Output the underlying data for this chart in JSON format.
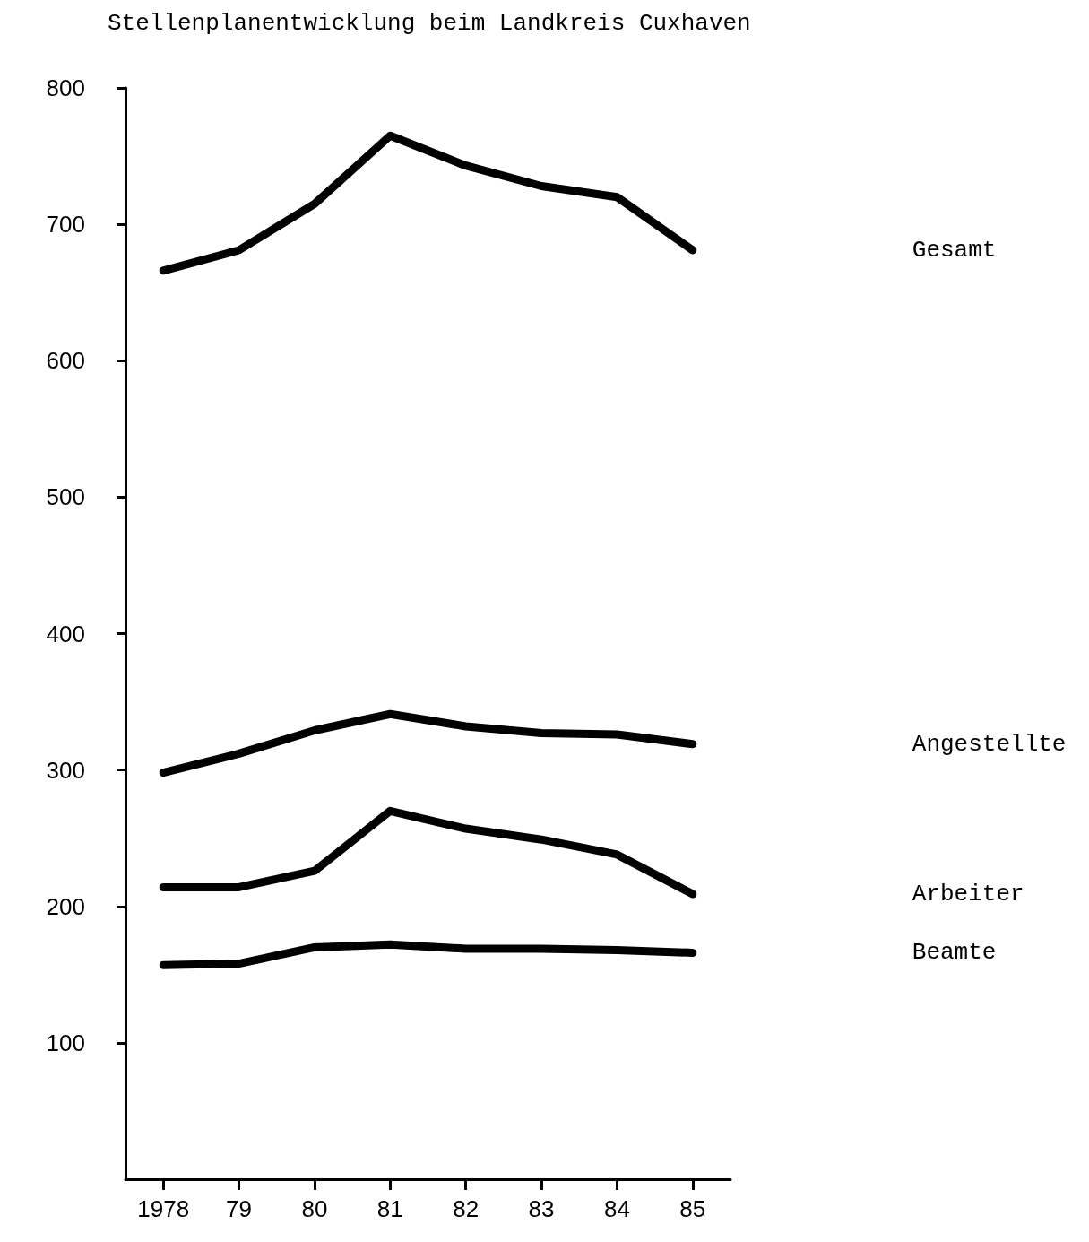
{
  "chart_data": {
    "type": "line",
    "title": "Stellenplanentwicklung beim Landkreis Cuxhaven",
    "categories": [
      "1978",
      "79",
      "80",
      "81",
      "82",
      "83",
      "84",
      "85"
    ],
    "series": [
      {
        "name": "Gesamt",
        "color": "#000000",
        "values": [
          666,
          681,
          715,
          765,
          743,
          728,
          720,
          681
        ]
      },
      {
        "name": "Angestellte",
        "color": "#000000",
        "values": [
          298,
          312,
          329,
          341,
          332,
          327,
          326,
          319
        ]
      },
      {
        "name": "Arbeiter",
        "color": "#000000",
        "values": [
          214,
          214,
          226,
          270,
          257,
          249,
          238,
          209
        ]
      },
      {
        "name": "Beamte",
        "color": "#000000",
        "values": [
          157,
          158,
          170,
          172,
          169,
          169,
          168,
          166
        ]
      }
    ],
    "ylim": [
      0,
      800
    ],
    "yticks": [
      100,
      200,
      300,
      400,
      500,
      600,
      700,
      800
    ],
    "grid": false,
    "marker": "none",
    "line_style": "solid"
  }
}
